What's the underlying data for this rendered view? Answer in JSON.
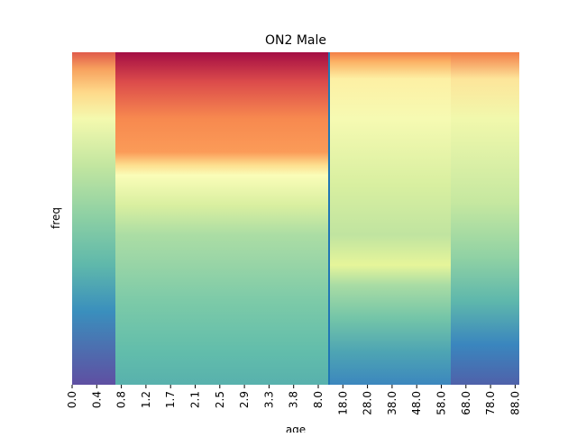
{
  "chart_data": {
    "type": "heatmap",
    "title": "ON2 Male",
    "xlabel": "age",
    "ylabel": "freq",
    "x_tick_labels": [
      "0.0",
      "0.4",
      "0.8",
      "1.2",
      "1.7",
      "2.1",
      "2.5",
      "2.9",
      "3.3",
      "3.8",
      "8.0",
      "18.0",
      "28.0",
      "38.0",
      "48.0",
      "58.0",
      "68.0",
      "78.0",
      "88.0"
    ],
    "y_tick_labels": [],
    "colormap": "Spectral",
    "colormap_stops": [
      "#9e0142",
      "#d53e4f",
      "#f46d43",
      "#fdae61",
      "#fee08b",
      "#ffffbf",
      "#e6f598",
      "#abdda4",
      "#66c2a5",
      "#3288bd",
      "#5e4fa2"
    ],
    "divider_color": "#1f77b4",
    "divider_after_tick": "8.0",
    "colorbar": false,
    "grid": false
  }
}
